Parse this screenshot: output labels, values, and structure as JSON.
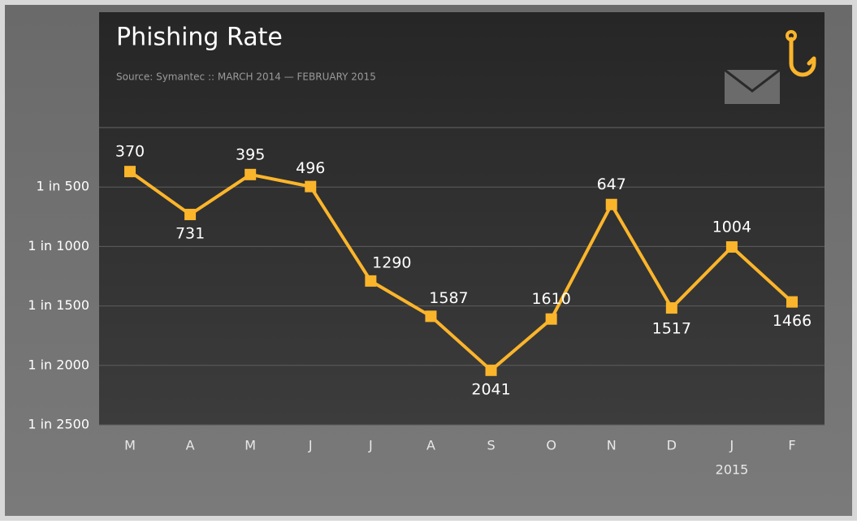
{
  "chart_data": {
    "type": "line",
    "title": "Phishing Rate",
    "subtitle": "Source: Symantec :: MARCH 2014 — FEBRUARY 2015",
    "categories": [
      "M",
      "A",
      "M",
      "J",
      "J",
      "A",
      "S",
      "O",
      "N",
      "D",
      "J",
      "F"
    ],
    "annotations": [
      "2015"
    ],
    "series": [
      {
        "name": "Phishing Rate",
        "color": "#fbb52b",
        "values": [
          370,
          731,
          395,
          496,
          1290,
          1587,
          2041,
          1610,
          647,
          1517,
          1004,
          1466
        ]
      }
    ],
    "ylim": [
      0,
      2500
    ],
    "inverted_y": true,
    "yticks": [
      {
        "value": 500,
        "label": "1 in 500"
      },
      {
        "value": 1000,
        "label": "1 in 1000"
      },
      {
        "value": 1500,
        "label": "1 in 1500"
      },
      {
        "value": 2000,
        "label": "1 in 2000"
      },
      {
        "value": 2500,
        "label": "1 in 2500"
      }
    ],
    "grid": true
  }
}
